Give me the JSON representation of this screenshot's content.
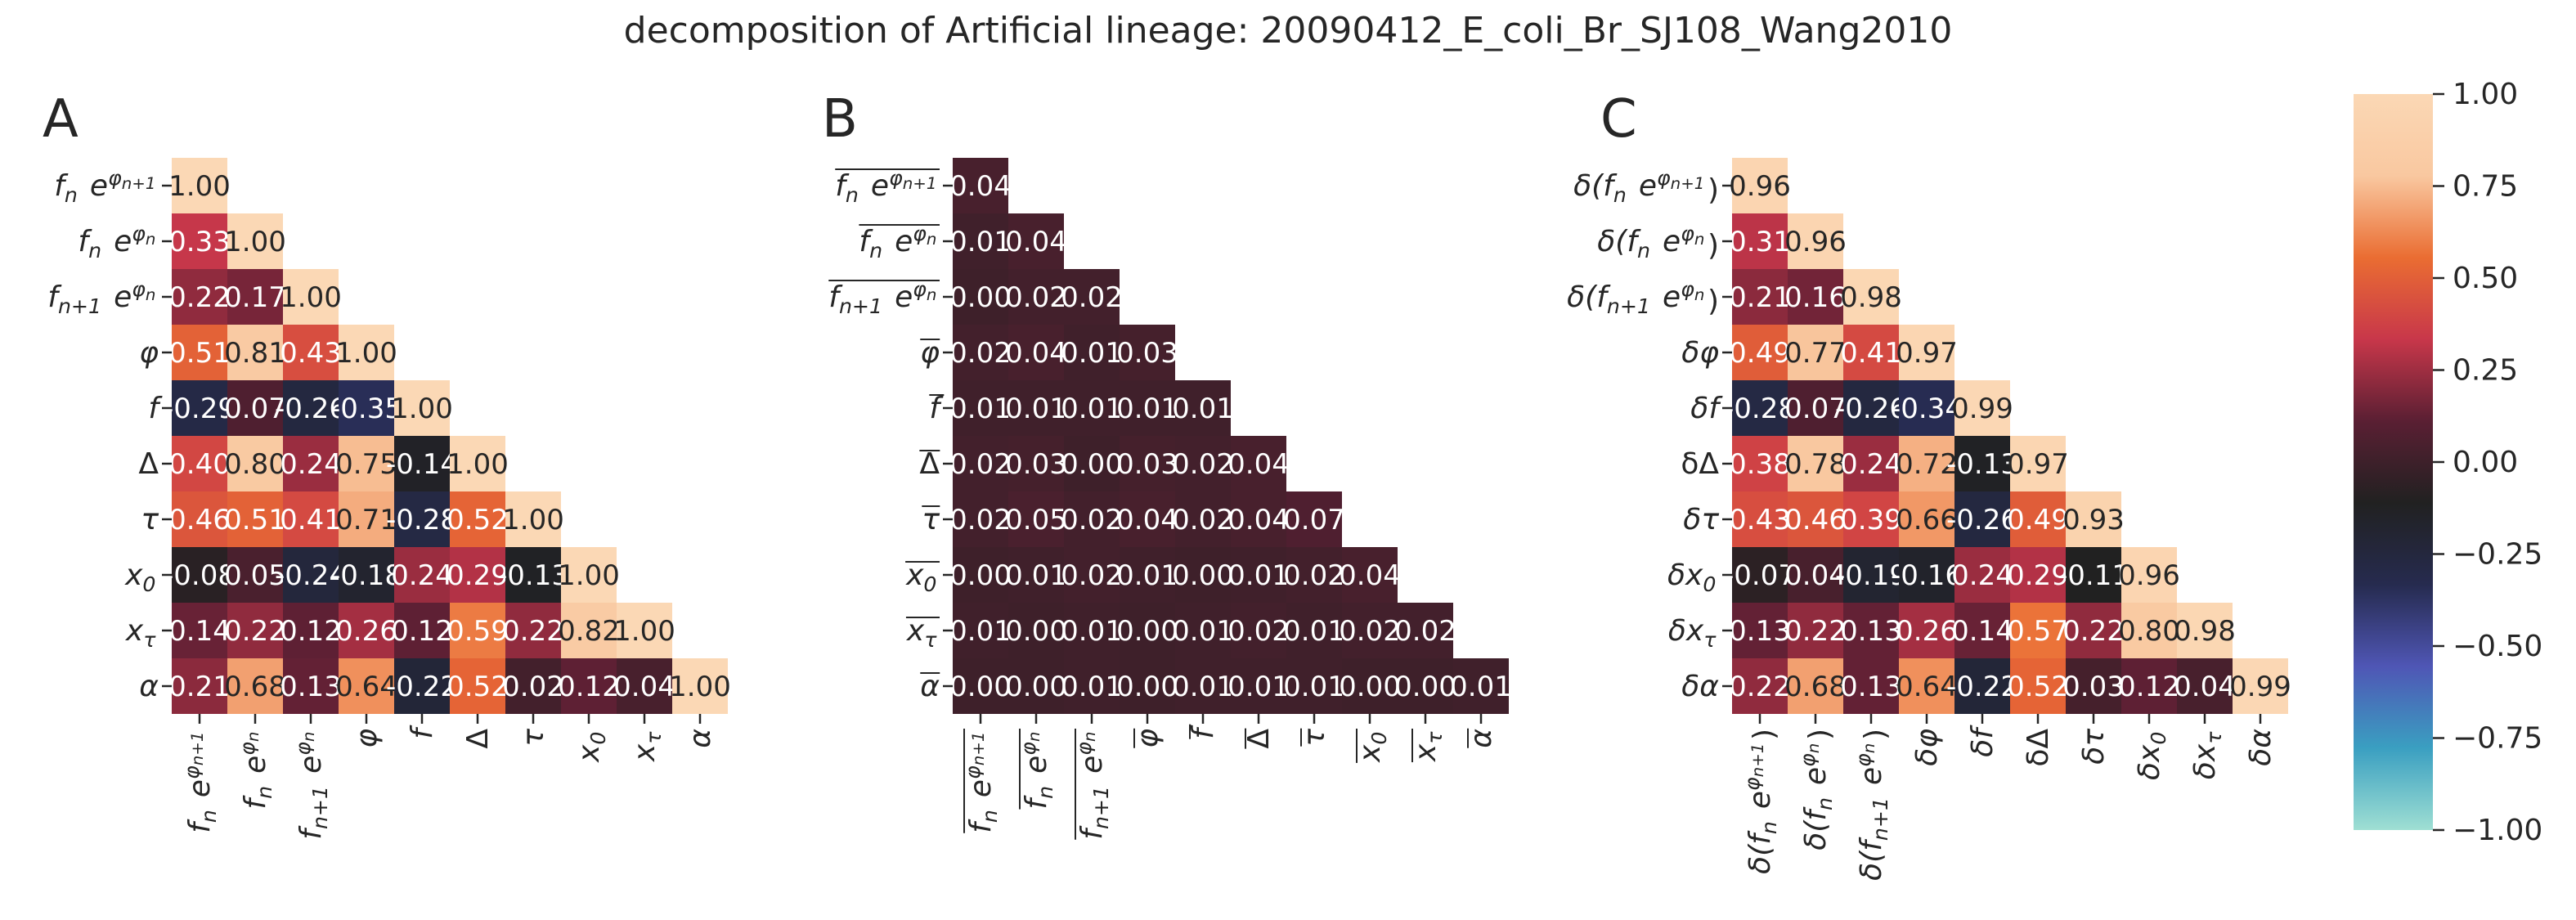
{
  "title": "decomposition of Artificial lineage: 20090412_E_coli_Br_SJ108_Wang2010",
  "colors": {
    "background": "#ffffff",
    "text": "#262626",
    "cmap_stops": [
      "#9fdfd3",
      "#3a9fc1",
      "#4f56b5",
      "#262b4f",
      "#212121",
      "#5a1f33",
      "#c8374a",
      "#ea6d32",
      "#f9c8a0",
      "#fbd8b5"
    ]
  },
  "colorbar": {
    "ticks": [
      "1.00",
      "0.75",
      "0.50",
      "0.25",
      "0.00",
      "−0.25",
      "−0.50",
      "−0.75",
      "−1.00"
    ],
    "range": [
      -1.0,
      1.0
    ]
  },
  "chart_data": [
    {
      "type": "heatmap",
      "panel_label": "A",
      "ylabels": [
        "f_n e^{φ_{n+1}}",
        "f_n e^{φ_n}",
        "f_{n+1} e^{φ_n}",
        "φ",
        "f",
        "Δ",
        "τ",
        "x_0",
        "x_τ",
        "α"
      ],
      "xlabels": [
        "f_n e^{φ_{n+1}}",
        "f_n e^{φ_n}",
        "f_{n+1} e^{φ_n}",
        "φ",
        "f",
        "Δ",
        "τ",
        "x_0",
        "x_τ",
        "α"
      ],
      "values": [
        [
          1.0
        ],
        [
          0.33,
          1.0
        ],
        [
          0.22,
          0.17,
          1.0
        ],
        [
          0.51,
          0.81,
          0.43,
          1.0
        ],
        [
          -0.29,
          0.07,
          -0.26,
          -0.35,
          1.0
        ],
        [
          0.4,
          0.8,
          0.24,
          0.75,
          -0.14,
          1.0
        ],
        [
          0.46,
          0.51,
          0.41,
          0.71,
          -0.28,
          0.52,
          1.0
        ],
        [
          -0.08,
          0.05,
          -0.24,
          -0.18,
          0.24,
          0.29,
          -0.13,
          1.0
        ],
        [
          0.14,
          0.22,
          0.12,
          0.26,
          0.12,
          0.59,
          0.22,
          0.82,
          1.0
        ],
        [
          0.21,
          0.68,
          0.13,
          0.64,
          -0.22,
          0.52,
          0.02,
          0.12,
          0.04,
          1.0
        ]
      ],
      "labels": [
        [
          "1.00"
        ],
        [
          "0.33",
          "1.00"
        ],
        [
          "0.22",
          "0.17",
          "1.00"
        ],
        [
          "0.51",
          "0.81",
          "0.43",
          "1.00"
        ],
        [
          "-0.29",
          "0.07",
          "-0.26",
          "-0.35",
          "1.00"
        ],
        [
          "0.40",
          "0.80",
          "0.24",
          "0.75",
          "-0.14",
          "1.00"
        ],
        [
          "0.46",
          "0.51",
          "0.41",
          "0.71",
          "-0.28",
          "0.52",
          "1.00"
        ],
        [
          "-0.08",
          "0.05",
          "-0.24",
          "-0.18",
          "0.24",
          "0.29",
          "-0.13",
          "1.00"
        ],
        [
          "0.14",
          "0.22",
          "0.12",
          "0.26",
          "0.12",
          "0.59",
          "0.22",
          "0.82",
          "1.00"
        ],
        [
          "0.21",
          "0.68",
          "0.13",
          "0.64",
          "-0.22",
          "0.52",
          "0.02",
          "0.12",
          "0.04",
          "1.00"
        ]
      ]
    },
    {
      "type": "heatmap",
      "panel_label": "B",
      "ylabels": [
        "mean(f_n e^{φ_{n+1}})",
        "mean(f_n e^{φ_n})",
        "mean(f_{n+1} e^{φ_n})",
        "mean(φ)",
        "mean(f)",
        "mean(Δ)",
        "mean(τ)",
        "mean(x_0)",
        "mean(x_τ)",
        "mean(α)"
      ],
      "xlabels": [
        "mean(f_n e^{φ_{n+1}})",
        "mean(f_n e^{φ_n})",
        "mean(f_{n+1} e^{φ_n})",
        "mean(φ)",
        "mean(f)",
        "mean(Δ)",
        "mean(τ)",
        "mean(x_0)",
        "mean(x_τ)",
        "mean(α)"
      ],
      "values": [
        [
          0.04
        ],
        [
          0.01,
          0.04
        ],
        [
          0.0,
          0.02,
          0.02
        ],
        [
          0.02,
          0.04,
          0.01,
          0.03
        ],
        [
          0.01,
          0.01,
          0.01,
          0.01,
          0.01
        ],
        [
          0.02,
          0.03,
          0.0,
          0.03,
          0.02,
          0.04
        ],
        [
          0.02,
          0.05,
          0.02,
          0.04,
          0.02,
          0.04,
          0.07
        ],
        [
          0.0,
          0.01,
          0.02,
          0.01,
          0.0,
          0.01,
          0.02,
          0.04
        ],
        [
          0.01,
          0.0,
          0.01,
          0.0,
          0.01,
          0.02,
          0.01,
          0.02,
          0.02
        ],
        [
          0.0,
          0.0,
          0.01,
          0.0,
          0.01,
          0.01,
          0.01,
          0.0,
          0.0,
          0.01
        ]
      ],
      "labels": [
        [
          "0.04"
        ],
        [
          "0.01",
          "0.04"
        ],
        [
          "0.00",
          "0.02",
          "0.02"
        ],
        [
          "0.02",
          "0.04",
          "0.01",
          "0.03"
        ],
        [
          "0.01",
          "0.01",
          "0.01",
          "0.01",
          "0.01"
        ],
        [
          "0.02",
          "0.03",
          "0.00",
          "0.03",
          "0.02",
          "0.04"
        ],
        [
          "0.02",
          "0.05",
          "0.02",
          "0.04",
          "0.02",
          "0.04",
          "0.07"
        ],
        [
          "0.00",
          "0.01",
          "0.02",
          "0.01",
          "0.00",
          "0.01",
          "0.02",
          "0.04"
        ],
        [
          "0.01",
          "0.00",
          "0.01",
          "0.00",
          "0.01",
          "0.02",
          "0.01",
          "0.02",
          "0.02"
        ],
        [
          "0.00",
          "0.00",
          "0.01",
          "0.00",
          "0.01",
          "0.01",
          "0.01",
          "0.00",
          "0.00",
          "0.01"
        ]
      ]
    },
    {
      "type": "heatmap",
      "panel_label": "C",
      "ylabels": [
        "δ(f_n e^{φ_{n+1}})",
        "δ(f_n e^{φ_n})",
        "δ(f_{n+1} e^{φ_n})",
        "δφ",
        "δf",
        "δΔ",
        "δτ",
        "δx_0",
        "δx_τ",
        "δα"
      ],
      "xlabels": [
        "δ(f_n e^{φ_{n+1}})",
        "δ(f_n e^{φ_n})",
        "δ(f_{n+1} e^{φ_n})",
        "δφ",
        "δf",
        "δΔ",
        "δτ",
        "δx_0",
        "δx_τ",
        "δα"
      ],
      "values": [
        [
          0.96
        ],
        [
          0.31,
          0.96
        ],
        [
          0.21,
          0.16,
          0.98
        ],
        [
          0.49,
          0.77,
          0.41,
          0.97
        ],
        [
          -0.28,
          0.07,
          -0.26,
          -0.34,
          0.99
        ],
        [
          0.38,
          0.78,
          0.24,
          0.72,
          -0.13,
          0.97
        ],
        [
          0.43,
          0.46,
          0.39,
          0.66,
          -0.26,
          0.49,
          0.93
        ],
        [
          -0.07,
          0.04,
          -0.19,
          -0.16,
          0.24,
          0.29,
          -0.11,
          0.96
        ],
        [
          0.13,
          0.22,
          0.13,
          0.26,
          0.14,
          0.57,
          0.22,
          0.8,
          0.98
        ],
        [
          0.22,
          0.68,
          0.13,
          0.64,
          -0.22,
          0.52,
          0.03,
          0.12,
          0.04,
          0.99
        ]
      ],
      "labels": [
        [
          "0.96"
        ],
        [
          "0.31",
          "0.96"
        ],
        [
          "0.21",
          "0.16",
          "0.98"
        ],
        [
          "0.49",
          "0.77",
          "0.41",
          "0.97"
        ],
        [
          "-0.28",
          "0.07",
          "-0.26",
          "-0.34",
          "0.99"
        ],
        [
          "0.38",
          "0.78",
          "0.24",
          "0.72",
          "-0.13",
          "0.97"
        ],
        [
          "0.43",
          "0.46",
          "0.39",
          "0.66",
          "-0.26",
          "0.49",
          "0.93"
        ],
        [
          "-0.07",
          "0.04",
          "-0.19",
          "-0.16",
          "0.24",
          "0.29",
          "-0.11",
          "0.96"
        ],
        [
          "0.13",
          "0.22",
          "0.13",
          "0.26",
          "0.14",
          "0.57",
          "0.22",
          "0.80",
          "0.98"
        ],
        [
          "0.22",
          "0.68",
          "0.13",
          "0.64",
          "-0.22",
          "0.52",
          "0.03",
          "0.12",
          "0.04",
          "0.99"
        ]
      ]
    }
  ]
}
